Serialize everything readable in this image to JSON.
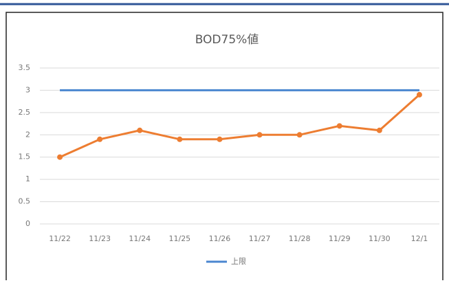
{
  "chart_data": {
    "type": "line",
    "title": "BOD75%値",
    "categories": [
      "11/22",
      "11/23",
      "11/24",
      "11/25",
      "11/26",
      "11/27",
      "11/28",
      "11/29",
      "11/30",
      "12/1"
    ],
    "series": [
      {
        "name": "上限",
        "color": "#4a86d0",
        "values": [
          3,
          3,
          3,
          3,
          3,
          3,
          3,
          3,
          3,
          3
        ]
      },
      {
        "color": "#ed7d31",
        "values": [
          1.5,
          1.9,
          2.1,
          1.9,
          1.9,
          2.0,
          2.0,
          2.2,
          2.1,
          2.9
        ]
      }
    ],
    "ylim": [
      0,
      3.5
    ],
    "yticks": [
      0,
      0.5,
      1,
      1.5,
      2,
      2.5,
      3,
      3.5
    ],
    "grid": true
  }
}
